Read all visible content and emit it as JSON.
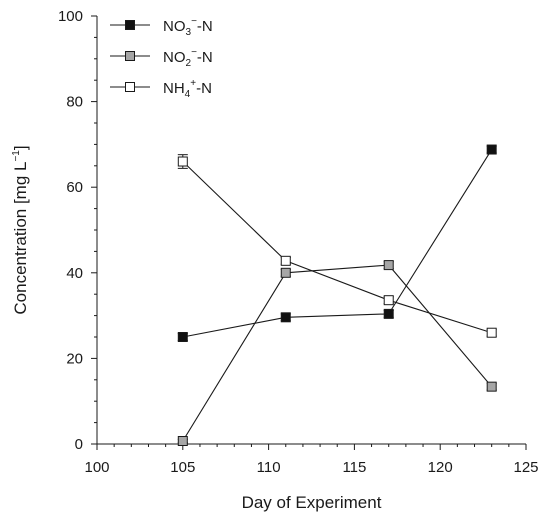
{
  "chart_data": {
    "type": "line",
    "xlabel": "Day of Experiment",
    "ylabel": {
      "main": "Concentration [mg L",
      "sup": "−1",
      "close": "]"
    },
    "xlim": [
      100,
      125
    ],
    "ylim": [
      0,
      100
    ],
    "xticks": [
      100,
      105,
      110,
      115,
      120,
      125
    ],
    "yticks": [
      0,
      20,
      40,
      60,
      80,
      100
    ],
    "grid": false,
    "legend_position": "top-left",
    "x": [
      105,
      111,
      117,
      123
    ],
    "series": [
      {
        "name": "NO3−-N",
        "label_parts": {
          "base": "NO",
          "sub": "3",
          "sup": "−",
          "tail": "-N"
        },
        "marker": "square",
        "fill": "#111111",
        "values": [
          25.0,
          29.6,
          30.4,
          68.8
        ],
        "errors": [
          0.8,
          0.8,
          0.8,
          0.8
        ]
      },
      {
        "name": "NO2−-N",
        "label_parts": {
          "base": "NO",
          "sub": "2",
          "sup": "−",
          "tail": "-N"
        },
        "marker": "square",
        "fill": "#a6a6a6",
        "values": [
          0.7,
          40.0,
          41.8,
          13.4
        ],
        "errors": [
          0.4,
          0.8,
          0.8,
          0.8
        ]
      },
      {
        "name": "NH4+-N",
        "label_parts": {
          "base": "NH",
          "sub": "4",
          "sup": "+",
          "tail": "-N"
        },
        "marker": "square",
        "fill": "#ffffff",
        "values": [
          66.0,
          42.8,
          33.6,
          26.0
        ],
        "errors": [
          1.6,
          0.8,
          0.8,
          0.8
        ]
      }
    ]
  }
}
